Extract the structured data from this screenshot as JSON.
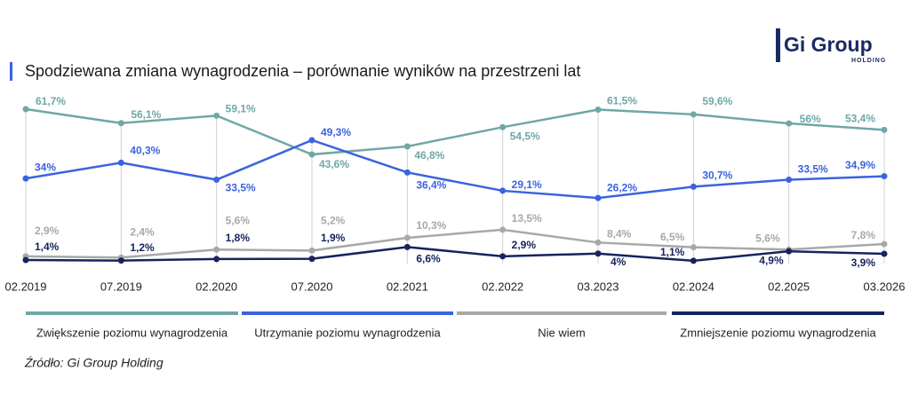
{
  "logo": {
    "name": "Gi Group",
    "tagline": "HOLDING"
  },
  "chart_data": {
    "type": "line",
    "title": "Spodziewana zmiana wynagrodzenia – porównanie wyników na przestrzeni lat",
    "categories": [
      "02.2019",
      "07.2019",
      "02.2020",
      "07.2020",
      "02.2021",
      "02.2022",
      "03.2023",
      "02.2024",
      "02.2025",
      "03.2026"
    ],
    "series": [
      {
        "name": "Zwiększenie poziomu wynagrodzenia",
        "color": "#6fa7a6",
        "values": [
          61.7,
          56.1,
          59.1,
          43.6,
          46.8,
          54.5,
          61.5,
          59.6,
          56,
          53.4
        ],
        "value_labels": [
          "61,7%",
          "56,1%",
          "59,1%",
          "43,6%",
          "46,8%",
          "54,5%",
          "61,5%",
          "59,6%",
          "56%",
          "53,4%"
        ]
      },
      {
        "name": "Utrzymanie poziomu wynagrodzenia",
        "color": "#3a63e0",
        "values": [
          34,
          40.3,
          33.5,
          49.3,
          36.4,
          29.1,
          26.2,
          30.7,
          33.5,
          34.9
        ],
        "value_labels": [
          "34%",
          "40,3%",
          "33,5%",
          "49,3%",
          "36,4%",
          "29,1%",
          "26,2%",
          "30,7%",
          "33,5%",
          "34,9%"
        ]
      },
      {
        "name": "Nie wiem",
        "color": "#a8a8a8",
        "values": [
          2.9,
          2.4,
          5.6,
          5.2,
          10.3,
          13.5,
          8.4,
          6.5,
          5.6,
          7.8
        ],
        "value_labels": [
          "2,9%",
          "2,4%",
          "5,6%",
          "5,2%",
          "10,3%",
          "13,5%",
          "8,4%",
          "6,5%",
          "5,6%",
          "7,8%"
        ]
      },
      {
        "name": "Zmniejszenie poziomu wynagrodzenia",
        "color": "#16235e",
        "values": [
          1.4,
          1.2,
          1.8,
          1.9,
          6.6,
          2.9,
          4,
          1.1,
          4.9,
          3.9
        ],
        "value_labels": [
          "1,4%",
          "1,2%",
          "1,8%",
          "1,9%",
          "6,6%",
          "2,9%",
          "4%",
          "1,1%",
          "4,9%",
          "3,9%"
        ]
      }
    ],
    "source": "Źródło: Gi Group Holding"
  }
}
